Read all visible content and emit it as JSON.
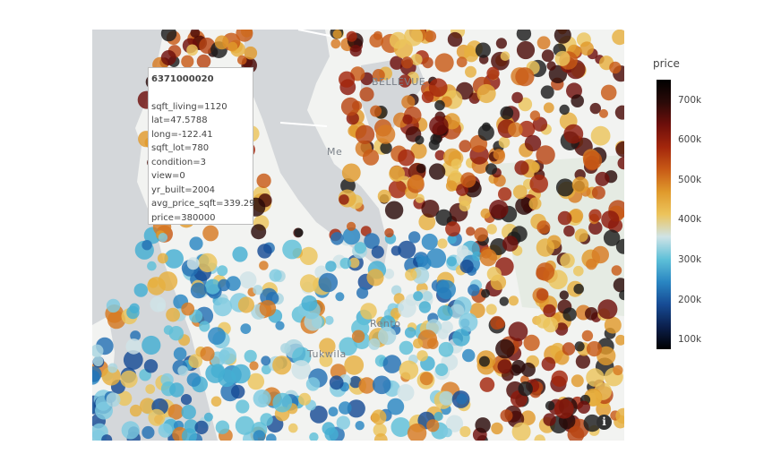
{
  "map": {
    "place_labels": [
      "BELLEVUE",
      "Me",
      "Rento",
      "Tukwila"
    ],
    "info_label": "i"
  },
  "tooltip": {
    "id": "6371000020",
    "lines": [
      "sqft_living=1120",
      "lat=47.5788",
      "long=-122.41",
      "sqft_lot=780",
      "condition=3",
      "view=0",
      "yr_built=2004",
      "avg_price_sqft=339.29",
      "price=380000"
    ]
  },
  "colorbar": {
    "title": "price",
    "ticks": [
      "700k",
      "600k",
      "500k",
      "400k",
      "300k",
      "200k",
      "100k"
    ],
    "tick_values": [
      700000,
      600000,
      500000,
      400000,
      300000,
      200000,
      100000
    ],
    "range": [
      60000,
      740000
    ],
    "colors": [
      "#000000",
      "#2a0a08",
      "#6e0f0b",
      "#a3260c",
      "#c85a16",
      "#e09a2c",
      "#ecc45c",
      "#cfe3e6",
      "#5ec0d8",
      "#2a86c2",
      "#174c95",
      "#0b1f4c",
      "#000000"
    ]
  },
  "colors": {
    "water": "#d4d7da",
    "land": "#f2f3f1",
    "park": "#e5ebe3"
  }
}
